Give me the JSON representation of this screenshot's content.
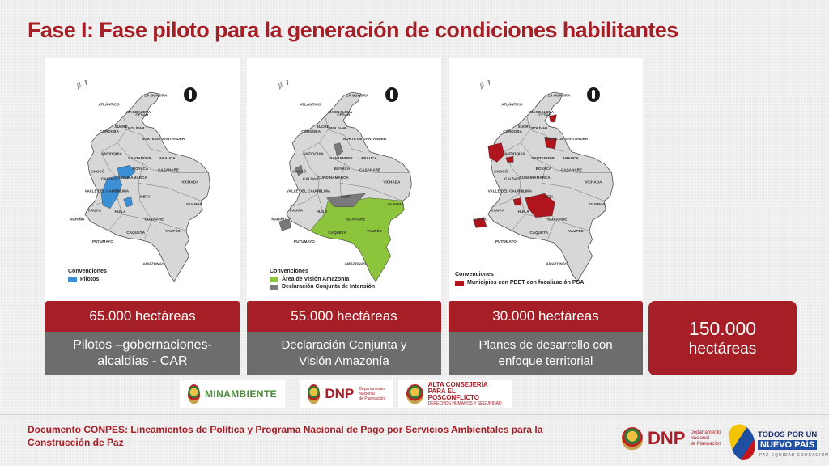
{
  "title": "Fase I: Fase piloto para la generación de condiciones habilitantes",
  "map_region_labels": [
    "LA GUAJIRA",
    "ATLÁNTICO",
    "MAGDALENA",
    "CESAR",
    "SUCRE",
    "CÓRDOBA",
    "BOLÍVAR",
    "NORTE DE SANTANDER",
    "ANTIOQUIA",
    "SANTANDER",
    "ARAUCA",
    "CHOCÓ",
    "BOYACÁ",
    "CASANARE",
    "CALDAS",
    "CUNDINAMARCA",
    "VICHADA",
    "VALLE DEL CAUCA",
    "TOLIMA",
    "META",
    "GUAINIA",
    "CAUCA",
    "HUILA",
    "GUAVIARE",
    "NARIÑO",
    "CAQUETÁ",
    "VAUPÉS",
    "PUTUMAYO",
    "AMAZONAS"
  ],
  "maps": [
    {
      "legend_title": "Convenciones",
      "legend_items": [
        {
          "label": "Pilotos",
          "color": "#3b8fd4"
        }
      ],
      "highlight_color": "#3b8fd4"
    },
    {
      "legend_title": "Convenciones",
      "legend_items": [
        {
          "label": "Área de Visión Amazonía",
          "color": "#8cc43c"
        },
        {
          "label": "Declaración Conjunta de Intensión",
          "color": "#7a7a7a"
        }
      ],
      "highlight_color": "#8cc43c"
    },
    {
      "legend_title": "Convenciones",
      "legend_items": [
        {
          "label": "Municipios con PDET con focalización PSA",
          "color": "#b0141c"
        }
      ],
      "highlight_color": "#b0141c"
    }
  ],
  "stats": [
    {
      "hectares": "65.000 hectáreas",
      "line1": "Pilotos –gobernaciones-",
      "line2": "alcaldías - CAR"
    },
    {
      "hectares": "55.000 hectáreas",
      "line1": "Declaración Conjunta y",
      "line2": "Visión Amazonía"
    },
    {
      "hectares": "30.000 hectáreas",
      "line1": "Planes de desarrollo con",
      "line2": "enfoque territorial"
    }
  ],
  "total": {
    "number": "150.000",
    "unit": "hectáreas"
  },
  "logos": {
    "minambiente": "MINAMBIENTE",
    "dnp": "DNP",
    "dnp_sub_1": "Departamento",
    "dnp_sub_2": "Nacional",
    "dnp_sub_3": "de Planeación",
    "alta_1": "ALTA CONSEJERÍA",
    "alta_2": "PARA EL POSCONFLICTO",
    "alta_3": "DERECHOS HUMANOS Y SEGURIDAD"
  },
  "footer": {
    "text": "Documento CONPES: Lineamientos de Política y Programa Nacional de Pago por Servicios Ambientales para la Construcción de Paz",
    "dnp": "DNP",
    "dnp_sub_1": "Departamento",
    "dnp_sub_2": "Nacional",
    "dnp_sub_3": "de Planeación",
    "tpun_top": "TODOS POR UN",
    "tpun_mid": "NUEVO PAÍS",
    "tpun_bot": "PAZ  EQUIDAD  EDUCACIÓN"
  },
  "colors": {
    "accent": "#a61e26",
    "stat_body": "#6d6d6d"
  }
}
